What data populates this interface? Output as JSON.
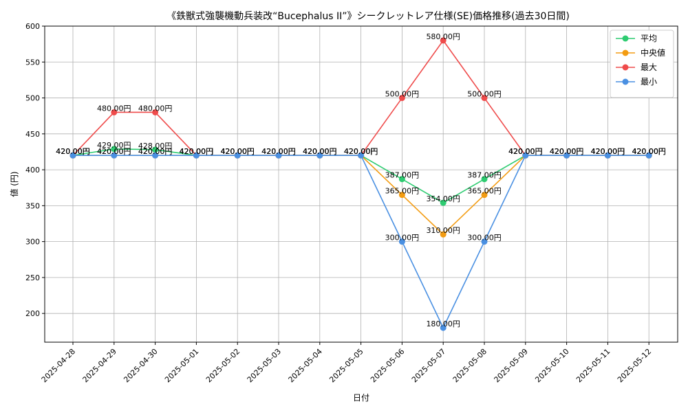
{
  "chart_data": {
    "type": "line",
    "title": "《鉄獣式強襲機動兵装改“Bucephalus II”》シークレットレア仕様(SE)価格推移(過去30日間)",
    "xlabel": "日付",
    "ylabel": "値 (円)",
    "ylim": [
      160,
      600
    ],
    "yticks": [
      200,
      250,
      300,
      350,
      400,
      450,
      500,
      550,
      600
    ],
    "grid": true,
    "legend_position": "top-right",
    "label_suffix": "円",
    "categories": [
      "2025-04-28",
      "2025-04-29",
      "2025-04-30",
      "2025-05-01",
      "2025-05-02",
      "2025-05-03",
      "2025-05-04",
      "2025-05-05",
      "2025-05-06",
      "2025-05-07",
      "2025-05-08",
      "2025-05-09",
      "2025-05-10",
      "2025-05-11",
      "2025-05-12"
    ],
    "series": [
      {
        "name": "平均",
        "color": "#2ecc71",
        "values": [
          420,
          429,
          428,
          420,
          420,
          420,
          420,
          420,
          387,
          354,
          387,
          420,
          420,
          420,
          420
        ]
      },
      {
        "name": "中央値",
        "color": "#f39c12",
        "values": [
          420,
          420,
          420,
          420,
          420,
          420,
          420,
          420,
          365,
          310,
          365,
          420,
          420,
          420,
          420
        ]
      },
      {
        "name": "最大",
        "color": "#ef4b4b",
        "values": [
          420,
          480,
          480,
          420,
          420,
          420,
          420,
          420,
          500,
          580,
          500,
          420,
          420,
          420,
          420
        ]
      },
      {
        "name": "最小",
        "color": "#4a90e2",
        "values": [
          420,
          420,
          420,
          420,
          420,
          420,
          420,
          420,
          300,
          180,
          300,
          420,
          420,
          420,
          420
        ]
      }
    ]
  }
}
